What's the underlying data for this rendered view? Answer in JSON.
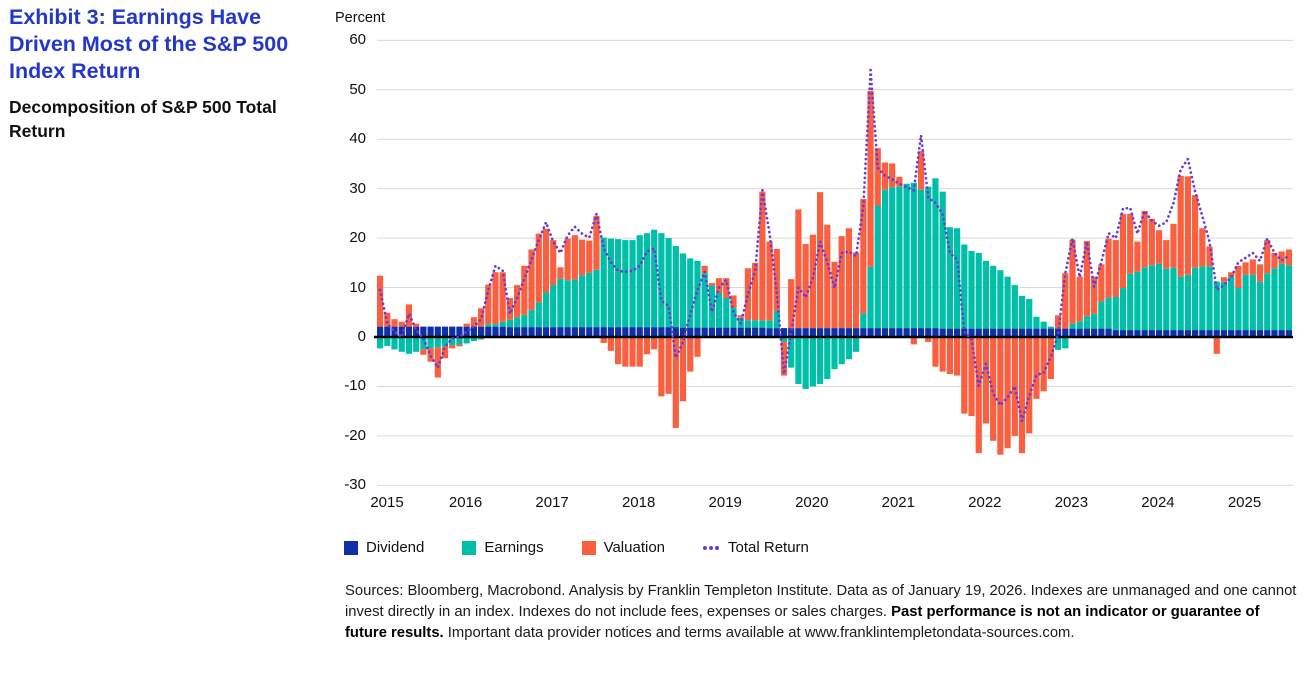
{
  "exhibit": {
    "title": "Exhibit 3: Earnings Have Driven Most of the S&P 500 Index Return",
    "subtitle": "Decomposition of S&P 500 Total Return"
  },
  "chart": {
    "y_axis_label": "Percent",
    "y_ticks": [
      60,
      50,
      40,
      30,
      20,
      10,
      0,
      -10,
      -20,
      -30
    ],
    "x_years": [
      "2015",
      "2016",
      "2017",
      "2018",
      "2019",
      "2020",
      "2021",
      "2022",
      "2023",
      "2024",
      "2025"
    ],
    "legend": [
      {
        "label": "Dividend",
        "color": "#0e2fa6",
        "type": "square"
      },
      {
        "label": "Earnings",
        "color": "#00bfa9",
        "type": "square"
      },
      {
        "label": "Valuation",
        "color": "#fa5f3f",
        "type": "square"
      },
      {
        "label": "Total Return",
        "color": "#6b3bd4",
        "type": "dotted-line"
      }
    ],
    "colors": {
      "dividend": "#0e2fa6",
      "earnings": "#00bfa9",
      "valuation": "#fa5f3f",
      "total_return": "#6b3bd4",
      "gridline": "#d9d9d9",
      "zero_line": "#000000",
      "title_blue": "#2338cb"
    }
  },
  "source_note": {
    "part1": "Sources: Bloomberg, Macrobond. Analysis by Franklin Templeton Institute. Data as of January 19, 2026. Indexes are unmanaged and one cannot invest directly in an index. Indexes do not include fees, expenses or sales charges. ",
    "bold": "Past performance is not an indicator or guarantee of future results.",
    "part2": " Important data provider notices and terms available at www.franklintempletondata-sources.com."
  },
  "chart_data": {
    "type": "bar",
    "subtype": "stacked-monthly-with-line",
    "title": "Decomposition of S&P 500 Total Return",
    "ylabel": "Percent",
    "ylim": [
      -30,
      60
    ],
    "grid": "horizontal",
    "legend_position": "bottom",
    "frequency": "monthly",
    "start_month": "2015-07",
    "end_month": "2026-01",
    "x_years": [
      2015,
      2016,
      2017,
      2018,
      2019,
      2020,
      2021,
      2022,
      2023,
      2024,
      2025
    ],
    "series": [
      {
        "name": "Dividend",
        "values": [
          2.1,
          2.1,
          2.1,
          2.1,
          2.1,
          2.1,
          2.1,
          2.1,
          2.1,
          2.1,
          2.1,
          2.1,
          2.1,
          2.1,
          2.1,
          2.1,
          2.1,
          2.1,
          2.0,
          2.0,
          2.0,
          2.0,
          2.0,
          2.0,
          2.0,
          2.0,
          2.0,
          2.0,
          2.0,
          2.0,
          2.0,
          2.0,
          2.0,
          2.0,
          2.0,
          2.0,
          2.0,
          2.0,
          2.0,
          2.0,
          2.0,
          2.0,
          1.9,
          1.9,
          1.9,
          1.9,
          1.9,
          1.9,
          1.9,
          1.9,
          1.9,
          1.9,
          1.9,
          1.9,
          1.8,
          1.8,
          1.8,
          1.8,
          1.8,
          1.8,
          1.8,
          1.8,
          1.8,
          1.8,
          1.8,
          1.8,
          1.8,
          1.8,
          1.8,
          1.8,
          1.8,
          1.8,
          1.8,
          1.8,
          1.8,
          1.8,
          1.8,
          1.8,
          1.7,
          1.7,
          1.7,
          1.7,
          1.7,
          1.7,
          1.7,
          1.7,
          1.7,
          1.7,
          1.7,
          1.7,
          1.7,
          1.7,
          1.7,
          1.7,
          1.7,
          1.7,
          1.7,
          1.7,
          1.7,
          1.7,
          1.7,
          1.7,
          1.4,
          1.4,
          1.4,
          1.4,
          1.4,
          1.4,
          1.4,
          1.4,
          1.4,
          1.4,
          1.4,
          1.4,
          1.4,
          1.4,
          1.4,
          1.4,
          1.4,
          1.4,
          1.4,
          1.4,
          1.4,
          1.4,
          1.4,
          1.4,
          1.4
        ]
      },
      {
        "name": "Earnings",
        "values": [
          -2.3,
          -1.8,
          -2.5,
          -3.0,
          -3.4,
          -3.0,
          -2.5,
          -2.3,
          -2.1,
          -1.9,
          -1.7,
          -1.5,
          -1.3,
          -0.8,
          -0.5,
          0.5,
          0.5,
          1.0,
          1.5,
          2.0,
          2.5,
          3.5,
          5.0,
          7.0,
          8.5,
          9.8,
          9.5,
          9.6,
          10.5,
          11.0,
          11.6,
          18.1,
          17.9,
          17.8,
          17.6,
          17.6,
          18.6,
          19.0,
          19.7,
          19.0,
          18.0,
          16.4,
          15.0,
          14.0,
          13.5,
          11.0,
          8.5,
          7.0,
          6.0,
          4.0,
          2.0,
          1.5,
          1.5,
          1.5,
          1.5,
          3.5,
          -1.0,
          -6.2,
          -9.5,
          -10.5,
          -10.0,
          -9.5,
          -8.5,
          -6.5,
          -5.5,
          -4.5,
          -3.0,
          3.0,
          12.4,
          24.8,
          28.0,
          28.5,
          28.6,
          29.2,
          29.4,
          28.0,
          28.6,
          30.3,
          27.7,
          20.5,
          20.3,
          17.0,
          15.7,
          15.3,
          13.7,
          12.7,
          11.8,
          10.5,
          8.8,
          6.6,
          6.0,
          2.4,
          1.4,
          0.4,
          -2.6,
          -2.3,
          1.0,
          1.5,
          2.5,
          3.0,
          5.5,
          6.2,
          6.7,
          8.5,
          11.4,
          11.8,
          12.7,
          13.1,
          13.4,
          12.4,
          12.6,
          10.8,
          11.2,
          12.6,
          12.9,
          12.9,
          9.8,
          9.8,
          10.8,
          8.5,
          11.2,
          11.2,
          9.8,
          11.5,
          12.5,
          13.4,
          13.1
        ]
      },
      {
        "name": "Valuation",
        "values": [
          10.3,
          2.8,
          1.5,
          1.0,
          4.5,
          0.6,
          -1.1,
          -2.7,
          -6.1,
          -2.4,
          -0.6,
          -0.4,
          0.6,
          1.9,
          3.7,
          8.0,
          10.5,
          10.0,
          4.4,
          6.5,
          9.9,
          12.2,
          13.9,
          12.9,
          9.1,
          2.3,
          8.4,
          9.0,
          7.2,
          6.5,
          10.9,
          -1.2,
          -2.8,
          -5.5,
          -6.0,
          -6.0,
          -6.0,
          -3.5,
          -2.5,
          -12.0,
          -11.5,
          -18.4,
          -13.0,
          -7.0,
          -4.0,
          1.5,
          0.5,
          3.0,
          4.0,
          2.5,
          0.5,
          10.5,
          11.6,
          26.0,
          16.0,
          12.5,
          -6.8,
          9.9,
          24.0,
          17.0,
          18.9,
          27.5,
          20.9,
          13.4,
          18.6,
          20.2,
          15.3,
          23.1,
          35.6,
          11.6,
          5.5,
          4.8,
          2.0,
          0.0,
          -1.5,
          7.8,
          -1.0,
          -6.0,
          -7.0,
          -7.5,
          -7.8,
          -15.5,
          -16.0,
          -23.5,
          -17.5,
          -21.0,
          -23.8,
          -22.5,
          -20.0,
          -23.5,
          -19.5,
          -12.5,
          -11.0,
          -8.5,
          2.7,
          11.2,
          17.0,
          9.0,
          15.2,
          7.5,
          7.5,
          12.0,
          11.5,
          15.0,
          12.1,
          6.1,
          11.4,
          9.4,
          6.8,
          5.8,
          8.9,
          20.4,
          19.9,
          14.7,
          7.7,
          4.0,
          -3.4,
          0.9,
          0.9,
          4.5,
          2.5,
          3.1,
          3.5,
          6.7,
          3.1,
          2.5,
          3.2
        ]
      },
      {
        "name": "Total Return",
        "values": [
          9.5,
          2.7,
          1.1,
          0.0,
          4.7,
          1.4,
          -0.3,
          -3.8,
          -6.2,
          -2.0,
          -0.3,
          0.0,
          1.1,
          2.1,
          3.6,
          9.5,
          14.4,
          13.4,
          4.7,
          7.9,
          11.8,
          15.7,
          19.6,
          23.2,
          19.3,
          17.0,
          20.5,
          22.3,
          20.9,
          20.1,
          24.9,
          18.0,
          15.1,
          13.4,
          13.2,
          13.4,
          14.4,
          17.3,
          17.9,
          7.3,
          6.3,
          -4.2,
          -1.0,
          4.5,
          9.5,
          13.2,
          5.1,
          10.0,
          11.5,
          5.0,
          2.7,
          8.6,
          13.4,
          29.7,
          20.9,
          9.0,
          -7.5,
          1.0,
          10.0,
          8.0,
          12.0,
          19.3,
          15.1,
          9.9,
          17.0,
          17.3,
          16.4,
          26.4,
          54.0,
          34.2,
          32.6,
          31.9,
          31.0,
          30.3,
          29.7,
          40.8,
          28.1,
          27.1,
          24.8,
          17.0,
          15.7,
          1.1,
          -0.5,
          -9.9,
          -5.4,
          -11.5,
          -13.8,
          -12.2,
          -10.0,
          -17.0,
          -12.0,
          -7.7,
          -7.2,
          -4.0,
          0.5,
          12.9,
          19.9,
          12.1,
          19.3,
          10.2,
          15.2,
          21.0,
          20.0,
          26.0,
          26.1,
          20.9,
          25.5,
          23.5,
          22.5,
          23.2,
          27.1,
          33.9,
          36.0,
          29.4,
          24.5,
          19.3,
          9.5,
          10.5,
          12.1,
          15.1,
          16.0,
          17.0,
          15.4,
          19.9,
          17.0,
          15.5,
          16.4
        ]
      }
    ]
  }
}
